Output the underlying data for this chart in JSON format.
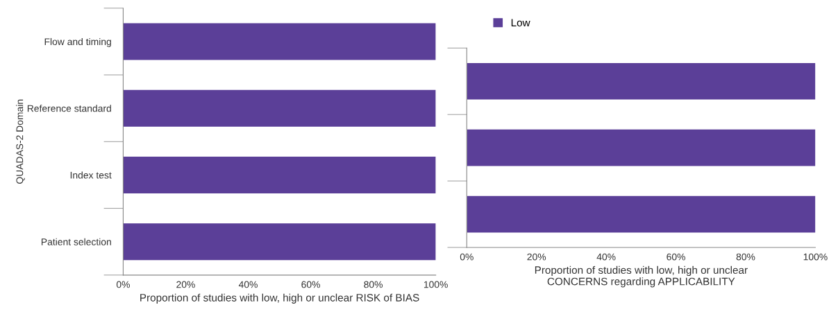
{
  "chart_data": [
    {
      "type": "bar",
      "orientation": "horizontal",
      "ylabel": "QUADAS-2 Domain",
      "xlabel": "Proportion of studies with low, high or unclear RISK of BIAS",
      "categories": [
        "Flow and timing",
        "Reference standard",
        "Index test",
        "Patient selection"
      ],
      "values": [
        100,
        100,
        100,
        100
      ],
      "color": "#5b3f98",
      "xlim": [
        0,
        100
      ],
      "xticks": [
        {
          "value": 0,
          "label": "0%"
        },
        {
          "value": 20,
          "label": "20%"
        },
        {
          "value": 40,
          "label": "40%"
        },
        {
          "value": 60,
          "label": "60%"
        },
        {
          "value": 80,
          "label": "80%"
        },
        {
          "value": 100,
          "label": "100%"
        }
      ],
      "grid": false,
      "legend": false
    },
    {
      "type": "bar",
      "orientation": "horizontal",
      "xlabel": "Proportion of studies with low, high or unclear\nCONCERNS regarding APPLICABILITY",
      "categories": [
        null,
        null,
        null
      ],
      "series": [
        {
          "name": "Low",
          "color": "#5b3f98",
          "values": [
            100,
            100,
            100
          ]
        }
      ],
      "xlim": [
        0,
        100
      ],
      "xticks": [
        {
          "value": 0,
          "label": "0%"
        },
        {
          "value": 20,
          "label": "20%"
        },
        {
          "value": 40,
          "label": "40%"
        },
        {
          "value": 60,
          "label": "60%"
        },
        {
          "value": 80,
          "label": "80%"
        },
        {
          "value": 100,
          "label": "100%"
        }
      ],
      "tick_labels": "x",
      "grid": false,
      "legend": "top left"
    }
  ]
}
